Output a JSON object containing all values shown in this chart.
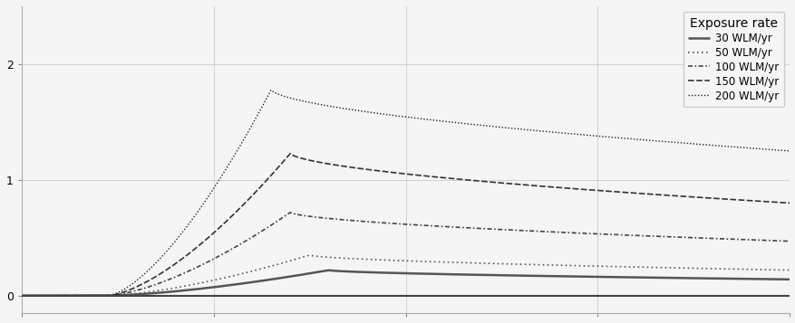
{
  "title": "",
  "xlabel": "",
  "ylabel": "",
  "xlim": [
    0,
    40
  ],
  "ylim": [
    -0.15,
    2.5
  ],
  "yticks": [
    0,
    1,
    2
  ],
  "xticks": [
    0,
    10,
    20,
    30,
    40
  ],
  "legend_title": "Exposure rate",
  "series": [
    {
      "label": "30 WLM/yr",
      "rise_start": 4.5,
      "peak_time": 16,
      "peak_hr": 0.22,
      "end_hr": 0.14,
      "color": "#555555",
      "lw": 1.8
    },
    {
      "label": "50 WLM/yr",
      "rise_start": 4.5,
      "peak_time": 15,
      "peak_hr": 0.35,
      "end_hr": 0.22,
      "color": "#555555",
      "lw": 1.2
    },
    {
      "label": "100 WLM/yr",
      "rise_start": 4.5,
      "peak_time": 14,
      "peak_hr": 0.72,
      "end_hr": 0.47,
      "color": "#444444",
      "lw": 1.2
    },
    {
      "label": "150 WLM/yr",
      "rise_start": 4.5,
      "peak_time": 14,
      "peak_hr": 1.23,
      "end_hr": 0.8,
      "color": "#333333",
      "lw": 1.2
    },
    {
      "label": "200 WLM/yr",
      "rise_start": 4.5,
      "peak_time": 13,
      "peak_hr": 1.78,
      "end_hr": 1.25,
      "color": "#222222",
      "lw": 1.0
    }
  ],
  "background_color": "#f5f5f5",
  "grid_color": "#cccccc",
  "hline_color": "#444444",
  "hline_y": 0
}
